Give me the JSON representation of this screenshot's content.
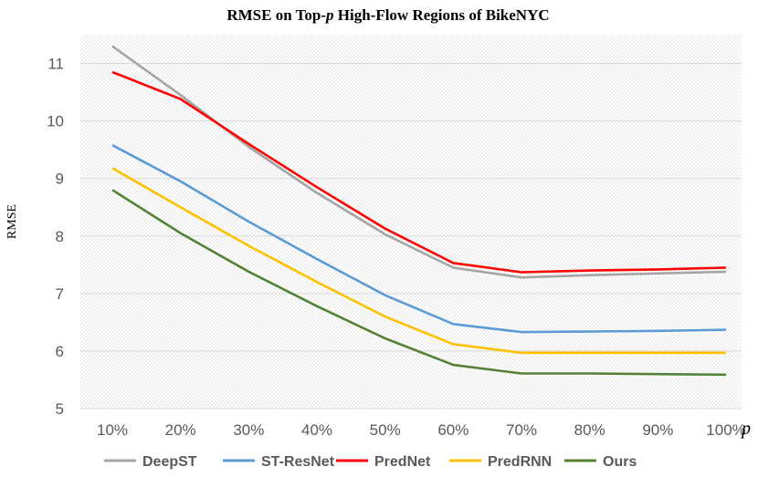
{
  "chart_data": {
    "type": "line",
    "title_prefix": "RMSE on Top-",
    "title_var": "p",
    "title_suffix": " High-Flow Regions of BikeNYC",
    "xlabel": "p",
    "ylabel": "RMSE",
    "categories": [
      "10%",
      "20%",
      "30%",
      "40%",
      "50%",
      "60%",
      "70%",
      "80%",
      "90%",
      "100%"
    ],
    "ylim": [
      5,
      11.5
    ],
    "yticks": [
      5,
      6,
      7,
      8,
      9,
      10,
      11
    ],
    "grid": true,
    "legend_position": "bottom",
    "series": [
      {
        "name": "DeepST",
        "color": "#a5a5a5",
        "values": [
          11.3,
          10.45,
          9.55,
          8.75,
          8.03,
          7.45,
          7.28,
          7.32,
          7.35,
          7.38
        ]
      },
      {
        "name": "ST-ResNet",
        "color": "#5b9bd5",
        "values": [
          9.58,
          8.95,
          8.25,
          7.6,
          6.97,
          6.47,
          6.33,
          6.34,
          6.35,
          6.37
        ]
      },
      {
        "name": "PredNet",
        "color": "#ff0000",
        "values": [
          10.85,
          10.38,
          9.6,
          8.85,
          8.13,
          7.53,
          7.37,
          7.4,
          7.42,
          7.45
        ]
      },
      {
        "name": "PredRNN",
        "color": "#ffc000",
        "values": [
          9.18,
          8.5,
          7.83,
          7.2,
          6.6,
          6.12,
          5.97,
          5.97,
          5.97,
          5.97
        ]
      },
      {
        "name": "Ours",
        "color": "#548235",
        "values": [
          8.8,
          8.05,
          7.38,
          6.78,
          6.22,
          5.76,
          5.61,
          5.61,
          5.6,
          5.59
        ]
      }
    ]
  }
}
